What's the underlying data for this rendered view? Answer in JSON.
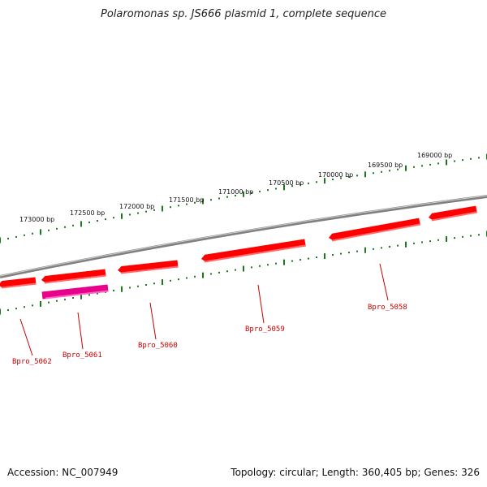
{
  "title": "Polaromonas sp. JS666 plasmid 1, complete sequence",
  "footer": {
    "accession": "Accession: NC_007949",
    "summary": "Topology: circular; Length: 360,405 bp; Genes: 326"
  },
  "colors": {
    "backbone": "#808080",
    "tick": "#1a7a1a",
    "gene": "#ff0000",
    "gene_highlight": "#e6008a",
    "label": "#cc0000"
  },
  "scale_labels": [
    "173000 bp",
    "172500 bp",
    "172000 bp",
    "171500 bp",
    "171000 bp",
    "170500 bp",
    "170000 bp",
    "169500 bp",
    "169000 bp"
  ],
  "genes": [
    {
      "name": "Bpro_5062",
      "highlight": false
    },
    {
      "name": "Bpro_5061",
      "highlight": false
    },
    {
      "name": "",
      "highlight": true
    },
    {
      "name": "Bpro_5060",
      "highlight": false
    },
    {
      "name": "Bpro_5059",
      "highlight": false
    },
    {
      "name": "Bpro_5058",
      "highlight": false
    },
    {
      "name": "",
      "highlight": false
    }
  ]
}
